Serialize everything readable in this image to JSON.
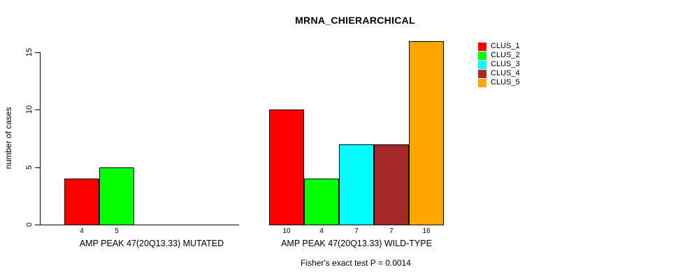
{
  "chart_data": {
    "type": "bar",
    "title": "MRNA_CHIERARCHICAL",
    "ylabel": "number of cases",
    "xlabel": "",
    "yticks": [
      0,
      5,
      10,
      15
    ],
    "ylim": [
      0,
      16.5
    ],
    "grid": false,
    "legend_position": "right",
    "clusters": [
      {
        "name": "CLUS_1",
        "color": "#FF0000"
      },
      {
        "name": "CLUS_2",
        "color": "#00FF00"
      },
      {
        "name": "CLUS_3",
        "color": "#00FFFF"
      },
      {
        "name": "CLUS_4",
        "color": "#A52A2A"
      },
      {
        "name": "CLUS_5",
        "color": "#FFA500"
      }
    ],
    "groups": [
      {
        "label": "AMP PEAK 47(20Q13.33) MUTATED",
        "values": [
          4,
          5,
          0,
          0,
          0
        ]
      },
      {
        "label": "AMP PEAK 47(20Q13.33) WILD-TYPE",
        "values": [
          10,
          4,
          7,
          7,
          16
        ]
      }
    ],
    "annotation": "Fisher's exact test P = 0.0014"
  }
}
